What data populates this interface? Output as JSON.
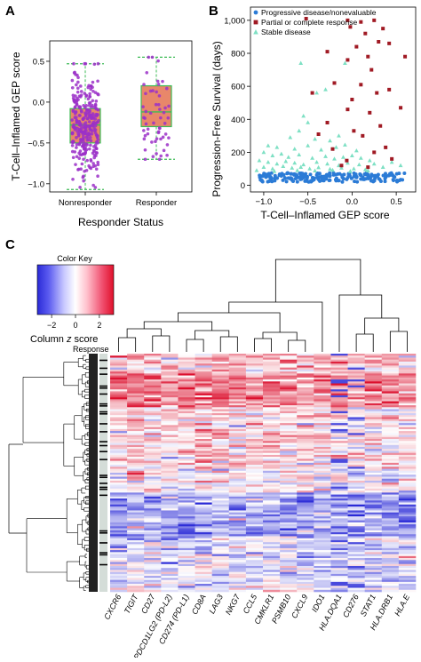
{
  "panels": {
    "a": {
      "letter": "A"
    },
    "b": {
      "letter": "B"
    },
    "c": {
      "letter": "C"
    }
  },
  "chart_data": [
    {
      "panel": "A",
      "type": "box",
      "xlabel": "Responder Status",
      "ylabel": "T-Cell–Inflamed GEP score",
      "ylim": [
        -1.1,
        0.75
      ],
      "yticks": [
        "0.5",
        "0.0",
        "−0.5",
        "−1.0"
      ],
      "ytick_values": [
        0.5,
        0.0,
        -0.5,
        -1.0
      ],
      "categories": [
        "Nonresponder",
        "Responder"
      ],
      "box_color": "#e8876a",
      "point_color": "#9b30c8",
      "box_stats": [
        {
          "min": -1.07,
          "q1": -0.5,
          "median": -0.28,
          "q3": -0.08,
          "max": 0.47
        },
        {
          "min": -0.7,
          "q1": -0.3,
          "median": -0.12,
          "q3": 0.2,
          "max": 0.55
        }
      ]
    },
    {
      "panel": "B",
      "type": "scatter",
      "xlabel": "T-Cell–Inflamed GEP score",
      "ylabel": "Progression-Free Survival (days)",
      "xlim": [
        -1.15,
        0.72
      ],
      "ylim": [
        -40,
        1080
      ],
      "xticks": [
        "−1.0",
        "−0.5",
        "0.0",
        "0.5"
      ],
      "xtick_values": [
        -1.0,
        -0.5,
        0.0,
        0.5
      ],
      "yticks": [
        "0",
        "200",
        "400",
        "600",
        "800",
        "1,000"
      ],
      "ytick_values": [
        0,
        200,
        400,
        600,
        800,
        1000
      ],
      "legend_position": "top-left",
      "series": [
        {
          "name": "Progressive disease/nonevaluable",
          "color": "#2b7bd6",
          "marker": "circle",
          "summary": {
            "y_band": [
              20,
              75
            ],
            "x_range": [
              -1.05,
              0.6
            ]
          }
        },
        {
          "name": "Partial or complete response",
          "color": "#a01a24",
          "marker": "square",
          "points": [
            [
              -0.52,
              1010
            ],
            [
              -0.05,
              1000
            ],
            [
              0.1,
              990
            ],
            [
              0.25,
              1000
            ],
            [
              -0.02,
              960
            ],
            [
              0.15,
              920
            ],
            [
              0.35,
              950
            ],
            [
              0.3,
              870
            ],
            [
              0.05,
              840
            ],
            [
              -0.28,
              810
            ],
            [
              0.18,
              780
            ],
            [
              -0.05,
              760
            ],
            [
              0.42,
              860
            ],
            [
              0.6,
              780
            ],
            [
              0.22,
              700
            ],
            [
              -0.2,
              620
            ],
            [
              0.1,
              610
            ],
            [
              0.28,
              560
            ],
            [
              0.42,
              580
            ],
            [
              -0.45,
              560
            ],
            [
              0.0,
              520
            ],
            [
              0.55,
              470
            ],
            [
              -0.05,
              460
            ],
            [
              0.2,
              440
            ],
            [
              -0.28,
              380
            ],
            [
              0.32,
              360
            ],
            [
              0.02,
              330
            ],
            [
              0.12,
              300
            ],
            [
              -0.38,
              310
            ],
            [
              -0.22,
              220
            ],
            [
              0.25,
              200
            ],
            [
              0.38,
              230
            ],
            [
              -0.06,
              150
            ],
            [
              0.45,
              160
            ],
            [
              0.18,
              110
            ],
            [
              -0.12,
              120
            ]
          ]
        },
        {
          "name": "Stable disease",
          "color": "#7ee0c4",
          "marker": "triangle",
          "points": [
            [
              -0.58,
              740
            ],
            [
              -0.4,
              560
            ],
            [
              -0.55,
              420
            ],
            [
              -0.5,
              380
            ],
            [
              -0.08,
              740
            ],
            [
              -0.3,
              580
            ],
            [
              -0.6,
              330
            ],
            [
              -0.15,
              300
            ],
            [
              -0.7,
              290
            ],
            [
              -0.42,
              280
            ],
            [
              -0.25,
              270
            ],
            [
              -0.95,
              240
            ],
            [
              -0.85,
              230
            ],
            [
              -0.65,
              220
            ],
            [
              -0.5,
              240
            ],
            [
              -0.35,
              215
            ],
            [
              -0.18,
              230
            ],
            [
              -0.08,
              245
            ],
            [
              0.05,
              210
            ],
            [
              -1.0,
              200
            ],
            [
              -0.9,
              180
            ],
            [
              -0.8,
              190
            ],
            [
              -0.72,
              170
            ],
            [
              -0.6,
              185
            ],
            [
              -0.45,
              165
            ],
            [
              -0.3,
              175
            ],
            [
              -0.2,
              160
            ],
            [
              -0.1,
              170
            ],
            [
              0.0,
              180
            ],
            [
              0.1,
              165
            ],
            [
              0.2,
              150
            ],
            [
              -1.05,
              150
            ],
            [
              -0.95,
              140
            ],
            [
              -0.85,
              130
            ],
            [
              -0.75,
              145
            ],
            [
              -0.65,
              135
            ],
            [
              -0.55,
              125
            ],
            [
              -0.4,
              140
            ],
            [
              -0.28,
              130
            ],
            [
              -0.15,
              120
            ],
            [
              -0.05,
              135
            ],
            [
              0.08,
              125
            ],
            [
              0.25,
              130
            ],
            [
              0.45,
              140
            ],
            [
              -1.0,
              110
            ],
            [
              -0.9,
              100
            ],
            [
              -0.78,
              115
            ],
            [
              -0.68,
              105
            ],
            [
              -0.58,
              110
            ],
            [
              -0.48,
              100
            ],
            [
              -0.38,
              108
            ],
            [
              -0.25,
              98
            ],
            [
              -0.12,
              105
            ],
            [
              0.02,
              100
            ],
            [
              0.15,
              95
            ],
            [
              0.35,
              110
            ],
            [
              0.55,
              120
            ],
            [
              -1.08,
              90
            ],
            [
              -0.88,
              85
            ],
            [
              -0.62,
              90
            ],
            [
              -0.42,
              88
            ],
            [
              -0.22,
              92
            ],
            [
              -0.02,
              85
            ],
            [
              0.18,
              88
            ]
          ]
        }
      ]
    },
    {
      "panel": "C",
      "type": "heatmap",
      "color_key": {
        "title": "Color Key",
        "ticks": [
          "−2",
          "0",
          "2"
        ],
        "tick_values": [
          -2,
          0,
          2
        ],
        "label": "Column ",
        "label_italic": "z",
        "label_suffix": " score",
        "colors": [
          "#2a2ad8",
          "#ffffff",
          "#e0102a"
        ]
      },
      "response_label": "Response",
      "columns": [
        "CXCR6",
        "TIGIT",
        "CD27",
        "PDCD1LG2 (PD-L2)",
        "CD274 (PD-L1)",
        "CD8A",
        "LAG3",
        "NKG7",
        "CCL5",
        "CMKLR1",
        "PSMB10",
        "CXCL9",
        "IDO1",
        "HLA.DQA1",
        "CD276",
        "STAT1",
        "HLA.DRB1",
        "HLA.E"
      ]
    }
  ]
}
